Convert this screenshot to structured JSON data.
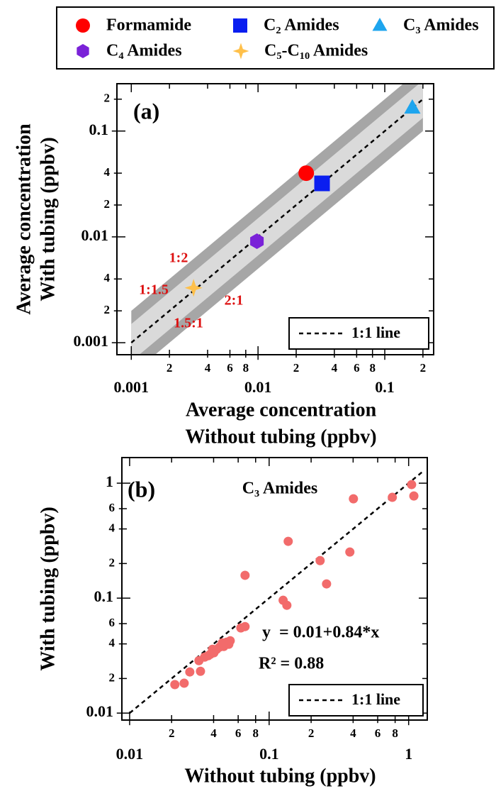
{
  "chart_data": [
    {
      "type": "scatter",
      "panel_label": "(a)",
      "xlabel": [
        "Average concentration",
        "Without tubing (ppbv)"
      ],
      "ylabel": [
        "Average concentration",
        "With tubing (ppbv)"
      ],
      "log_x": true,
      "log_y": true,
      "xlim": [
        0.00077,
        0.243
      ],
      "ylim": [
        0.00077,
        0.28
      ],
      "xticks": [
        0.001,
        {
          "value": 0.002,
          "label": "2"
        },
        {
          "value": 0.004,
          "label": "4"
        },
        {
          "value": 0.006,
          "label": "6"
        },
        {
          "value": 0.008,
          "label": "8"
        },
        0.01,
        {
          "value": 0.02,
          "label": "2"
        },
        {
          "value": 0.04,
          "label": "4"
        },
        {
          "value": 0.06,
          "label": "6"
        },
        {
          "value": 0.08,
          "label": "8"
        },
        0.1,
        {
          "value": 0.2,
          "label": "2"
        }
      ],
      "yticks": [
        0.001,
        {
          "value": 0.002,
          "label": "2"
        },
        {
          "value": 0.004,
          "label": "4"
        },
        0.01,
        {
          "value": 0.02,
          "label": "2"
        },
        {
          "value": 0.04,
          "label": "4"
        },
        0.1,
        {
          "value": 0.2,
          "label": "2"
        }
      ],
      "series": [
        {
          "name": "Formamide",
          "color": "#ff0000",
          "marker": "circle",
          "x": [
            0.024
          ],
          "values": [
            0.04
          ]
        },
        {
          "name": "C₂ Amides",
          "color": "#0a1ef0",
          "marker": "square",
          "x": [
            0.032
          ],
          "values": [
            0.032
          ]
        },
        {
          "name": "C₃ Amides",
          "color": "#1ea5ee",
          "marker": "triangle",
          "x": [
            0.165
          ],
          "values": [
            0.166
          ]
        },
        {
          "name": "C₄ Amides",
          "color": "#7a22d8",
          "marker": "hexagon",
          "x": [
            0.0098
          ],
          "values": [
            0.0091
          ]
        },
        {
          "name": "C₅-C₁₀ Amides",
          "color": "#ffc04a",
          "marker": "star",
          "x": [
            0.0031
          ],
          "values": [
            0.0033
          ]
        }
      ],
      "bands": [
        {
          "ratio": 2,
          "color": "#a6a6a6"
        },
        {
          "ratio": 1.5,
          "color": "#dadada"
        }
      ],
      "band_range": [
        0.001,
        0.2
      ],
      "band_labels": [
        "1:2",
        "1:1.5",
        "2:1",
        "1.5:1"
      ],
      "band_label_color": "#dd1111",
      "reference_line": {
        "label": "1:1 line",
        "range": [
          0.001,
          0.2
        ]
      }
    },
    {
      "type": "scatter",
      "panel_label": "(b)",
      "title": "C₃ Amides",
      "xlabel": "Without tubing (ppbv)",
      "ylabel": "With tubing (ppbv)",
      "log_x": true,
      "log_y": true,
      "xlim": [
        0.0088,
        1.36
      ],
      "ylim": [
        0.0087,
        1.67
      ],
      "xticks": [
        0.01,
        {
          "value": 0.02,
          "label": "2"
        },
        {
          "value": 0.04,
          "label": "4"
        },
        {
          "value": 0.06,
          "label": "6"
        },
        {
          "value": 0.08,
          "label": "8"
        },
        0.1,
        {
          "value": 0.2,
          "label": "2"
        },
        {
          "value": 0.4,
          "label": "4"
        },
        {
          "value": 0.6,
          "label": "6"
        },
        {
          "value": 0.8,
          "label": "8"
        },
        1
      ],
      "yticks": [
        0.01,
        {
          "value": 0.02,
          "label": "2"
        },
        {
          "value": 0.04,
          "label": "4"
        },
        {
          "value": 0.06,
          "label": "6"
        },
        0.1,
        {
          "value": 0.2,
          "label": "2"
        },
        {
          "value": 0.4,
          "label": "4"
        },
        {
          "value": 0.6,
          "label": "6"
        },
        1
      ],
      "color": "#f26b6b",
      "x": [
        0.0211,
        0.0246,
        0.027,
        0.0314,
        0.0322,
        0.0345,
        0.0366,
        0.0379,
        0.0402,
        0.0393,
        0.0421,
        0.0441,
        0.0457,
        0.0473,
        0.0496,
        0.0514,
        0.0526,
        0.0462,
        0.0627,
        0.0672,
        0.0672,
        0.126,
        0.134,
        0.137,
        0.232,
        0.258,
        0.379,
        0.402,
        0.764,
        1.05,
        1.09
      ],
      "values": [
        0.0177,
        0.0182,
        0.0228,
        0.0286,
        0.0231,
        0.0307,
        0.0316,
        0.0325,
        0.0335,
        0.0359,
        0.0359,
        0.0375,
        0.0386,
        0.038,
        0.0414,
        0.0397,
        0.0426,
        0.0408,
        0.0551,
        0.0566,
        0.158,
        0.0958,
        0.0867,
        0.312,
        0.212,
        0.133,
        0.252,
        0.731,
        0.753,
        0.972,
        0.774
      ],
      "annotations": [
        "y  = 0.01+0.84*x",
        "R² = 0.88"
      ],
      "reference_line": {
        "label": "1:1 line",
        "range": [
          0.01,
          1.28
        ]
      }
    }
  ]
}
